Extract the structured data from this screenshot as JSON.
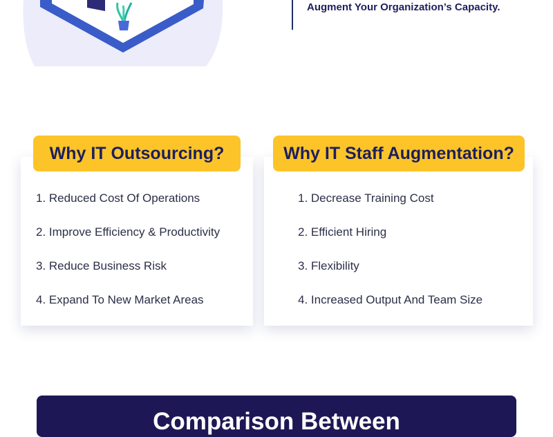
{
  "header": {
    "note_line": "Augment Your Organization’s Capacity."
  },
  "outsourcing": {
    "title": "Why IT Outsourcing?",
    "items": [
      "1. Reduced Cost Of Operations",
      "2. Improve Efficiency & Productivity",
      "3. Reduce Business Risk",
      "4. Expand To New Market Areas"
    ]
  },
  "augmentation": {
    "title": "Why IT Staff Augmentation?",
    "items": [
      "1. Decrease Training Cost",
      "2. Efficient Hiring",
      "3. Flexibility",
      "4. Increased Output And Team Size"
    ]
  },
  "banner": {
    "title": "Comparison Between"
  },
  "colors": {
    "accent_yellow": "#fcc428",
    "navy": "#1d1855",
    "heading_text": "#1d1f5e",
    "illustration_bg": "#ececfb",
    "platform_blue": "#3f63cf"
  },
  "icons": [
    "office-desk-illustration",
    "potted-plant-icon"
  ]
}
